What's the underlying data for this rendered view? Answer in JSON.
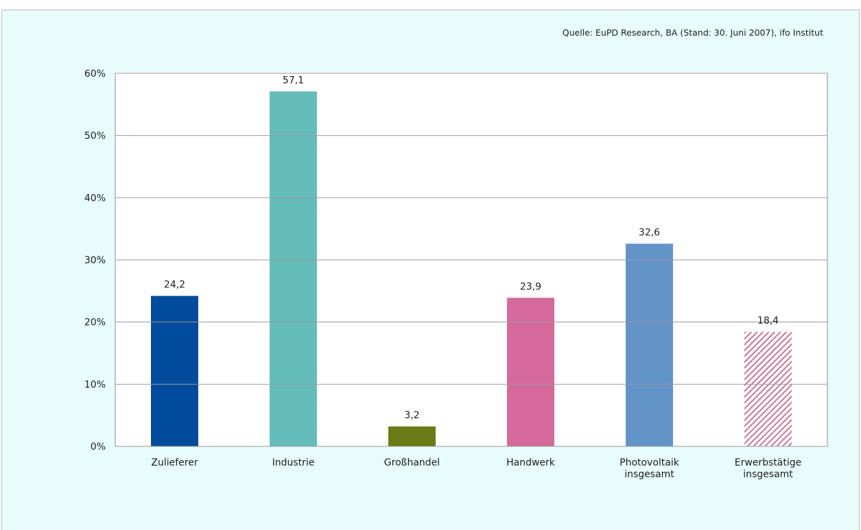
{
  "source_note": "Quelle: EuPD Research, BA (Stand: 30. Juni 2007), ifo Institut",
  "chart_data": {
    "type": "bar",
    "categories": [
      [
        "Zulieferer"
      ],
      [
        "Industrie"
      ],
      [
        "Großhandel"
      ],
      [
        "Handwerk"
      ],
      [
        "Photovoltaik",
        "insgesamt"
      ],
      [
        "Erwerbstätige",
        "insgesamt"
      ]
    ],
    "values": [
      24.2,
      57.1,
      3.2,
      23.9,
      32.6,
      18.4
    ],
    "value_labels": [
      "24,2",
      "57,1",
      "3,2",
      "23,9",
      "32,6",
      "18,4"
    ],
    "colors": [
      "#004b9b",
      "#64bdb9",
      "#6b7b17",
      "#d46a9b",
      "#6394c8",
      "hatch-pink"
    ],
    "ylim": [
      0,
      60
    ],
    "yticks": [
      0,
      10,
      20,
      30,
      40,
      50,
      60
    ],
    "ytick_labels": [
      "0%",
      "10%",
      "20%",
      "30%",
      "40%",
      "50%",
      "60%"
    ],
    "grid": true,
    "legend": "none",
    "title": "",
    "xlabel": "",
    "ylabel": ""
  }
}
